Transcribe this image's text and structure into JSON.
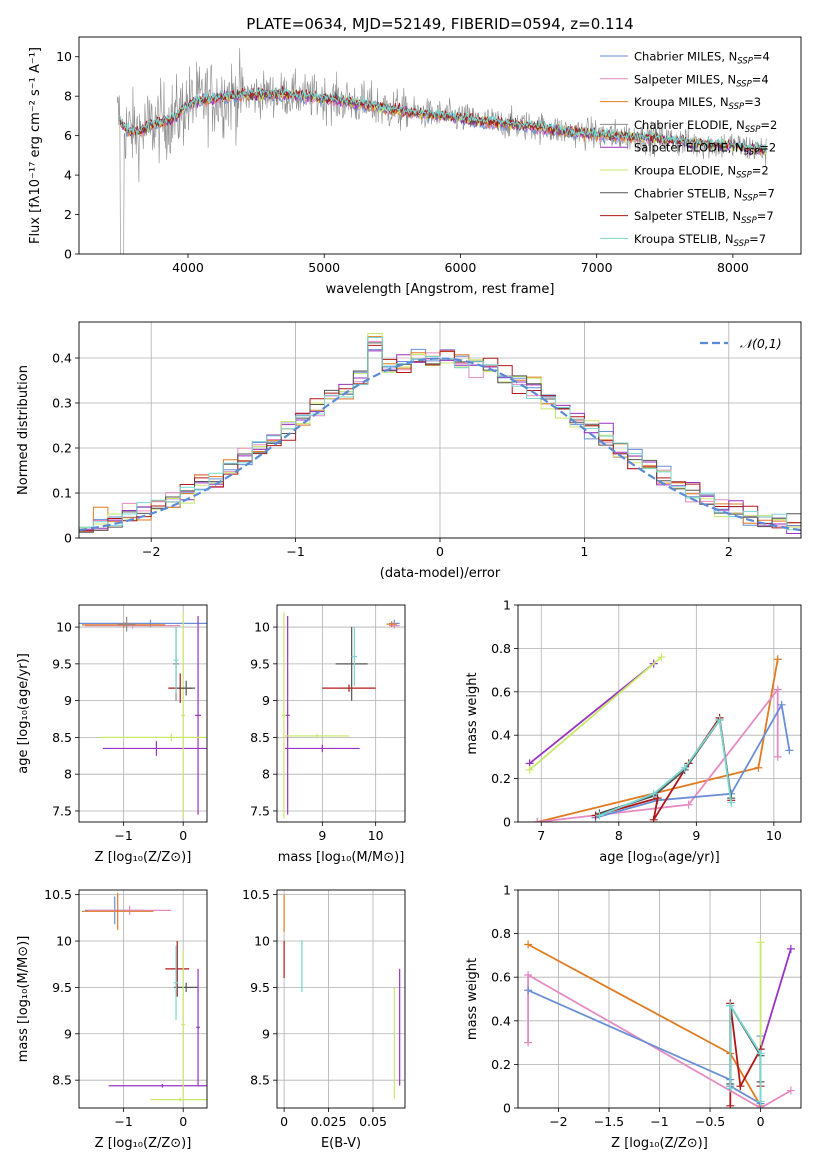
{
  "figure": {
    "title": "PLATE=0634, MJD=52149, FIBERID=0594, z=0.114"
  },
  "colors": {
    "chabrier_miles": "#6a8fd6",
    "salpeter_miles": "#e58ac2",
    "kroupa_miles": "#e07b22",
    "chabrier_elodie": "#8b8b8b",
    "salpeter_elodie": "#9932c0",
    "kroupa_elodie": "#c8e86a",
    "chabrier_stelib": "#555555",
    "salpeter_stelib": "#b01818",
    "kroupa_stelib": "#79d6d0",
    "normal_curve": "#5b8bd8",
    "grid": "#b0b0b0"
  },
  "chart_data": [
    {
      "id": "spectrum",
      "type": "line",
      "title": "",
      "xlabel": "wavelength [Angstrom, rest frame]",
      "ylabel": "Flux [fλ10⁻¹⁷ erg cm⁻² s⁻¹ A⁻¹]",
      "xlim": [
        3200,
        8500
      ],
      "ylim": [
        0,
        11
      ],
      "x_ticks": [
        4000,
        5000,
        6000,
        7000,
        8000
      ],
      "y_ticks": [
        0,
        2,
        4,
        6,
        8,
        10
      ],
      "grid": false,
      "legend": "top-right",
      "series": [
        {
          "name": "Chabrier MILES, N_SSP=4",
          "color_key": "chabrier_miles"
        },
        {
          "name": "Salpeter MILES, N_SSP=4",
          "color_key": "salpeter_miles"
        },
        {
          "name": "Kroupa MILES, N_SSP=3",
          "color_key": "kroupa_miles"
        },
        {
          "name": "Chabrier ELODIE, N_SSP=2",
          "color_key": "chabrier_elodie"
        },
        {
          "name": "Salpeter ELODIE, N_SSP=2",
          "color_key": "salpeter_elodie"
        },
        {
          "name": "Kroupa ELODIE, N_SSP=2",
          "color_key": "kroupa_elodie"
        },
        {
          "name": "Chabrier STELIB, N_SSP=7",
          "color_key": "chabrier_stelib"
        },
        {
          "name": "Salpeter STELIB, N_SSP=7",
          "color_key": "salpeter_stelib"
        },
        {
          "name": "Kroupa STELIB, N_SSP=7",
          "color_key": "kroupa_stelib"
        }
      ],
      "continuum": {
        "x": [
          3480,
          3550,
          3650,
          3750,
          3900,
          4000,
          4100,
          4300,
          4500,
          4700,
          5000,
          5300,
          5600,
          5900,
          6200,
          6500,
          6800,
          7100,
          7400,
          7700,
          8000,
          8250
        ],
        "y": [
          7.0,
          6.3,
          6.2,
          6.6,
          6.9,
          7.6,
          7.8,
          8.0,
          8.1,
          8.1,
          7.9,
          7.6,
          7.2,
          7.0,
          6.7,
          6.5,
          6.2,
          6.0,
          5.9,
          5.6,
          5.5,
          5.2
        ]
      }
    },
    {
      "id": "residuals",
      "type": "histogram",
      "xlabel": "(data-model)/error",
      "ylabel": "Normed distribution",
      "xlim": [
        -2.5,
        2.5
      ],
      "ylim": [
        0,
        0.48
      ],
      "x_ticks": [
        -2,
        -1,
        0,
        1,
        2
      ],
      "y_ticks": [
        0.0,
        0.1,
        0.2,
        0.3,
        0.4
      ],
      "grid": true,
      "legend": "top-right",
      "normal_label": "𝒩(0,1)",
      "bin_width": 0.1
    },
    {
      "id": "age_vs_Z",
      "type": "errorbar",
      "xlabel": "Z [log₁₀(Z/Z⊙)]",
      "ylabel": "age  [log₁₀(age/yr)]",
      "xlim": [
        -1.75,
        0.4
      ],
      "ylim": [
        7.35,
        10.3
      ],
      "x_ticks": [
        -1,
        0
      ],
      "y_ticks": [
        7.5,
        8.0,
        8.5,
        9.0,
        9.5,
        10.0
      ],
      "grid": true,
      "points": [
        {
          "c": "chabrier_miles",
          "x": -0.55,
          "xe": 1.2,
          "y": 10.05,
          "ye": 0.05
        },
        {
          "c": "salpeter_miles",
          "x": -0.85,
          "xe": 0.8,
          "y": 10.02,
          "ye": 0.04
        },
        {
          "c": "kroupa_miles",
          "x": -1.0,
          "xe": 0.7,
          "y": 10.03,
          "ye": 0.04
        },
        {
          "c": "chabrier_elodie",
          "x": -0.95,
          "xe": 0.15,
          "y": 10.04,
          "ye": 0.1
        },
        {
          "c": "chabrier_elodie",
          "x": -0.12,
          "xe": 0.05,
          "y": 9.5,
          "ye": 0.5
        },
        {
          "c": "salpeter_elodie",
          "x": 0.25,
          "xe": 0.05,
          "y": 8.8,
          "ye": 1.35
        },
        {
          "c": "salpeter_elodie",
          "x": -0.45,
          "xe": 0.9,
          "y": 8.35,
          "ye": 0.1
        },
        {
          "c": "kroupa_elodie",
          "x": -0.2,
          "xe": 1.2,
          "y": 8.5,
          "ye": 0.05
        },
        {
          "c": "kroupa_elodie",
          "x": 0.0,
          "xe": 0.03,
          "y": 8.8,
          "ye": 1.4
        },
        {
          "c": "salpeter_stelib",
          "x": -0.05,
          "xe": 0.2,
          "y": 9.17,
          "ye": 0.2
        },
        {
          "c": "chabrier_stelib",
          "x": 0.05,
          "xe": 0.15,
          "y": 9.17,
          "ye": 0.1
        },
        {
          "c": "kroupa_stelib",
          "x": -0.12,
          "xe": 0.04,
          "y": 9.55,
          "ye": 0.45
        }
      ]
    },
    {
      "id": "age_vs_mass",
      "type": "errorbar",
      "xlabel": "mass [log₁₀(M/M⊙)]",
      "ylabel": "",
      "xlim": [
        8.15,
        10.55
      ],
      "ylim": [
        7.35,
        10.3
      ],
      "x_ticks": [
        9,
        10
      ],
      "y_ticks": [
        7.5,
        8.0,
        8.5,
        9.0,
        9.5,
        10.0
      ],
      "grid": true,
      "points": [
        {
          "c": "chabrier_miles",
          "x": 10.35,
          "xe": 0.1,
          "y": 10.05,
          "ye": 0.05
        },
        {
          "c": "salpeter_miles",
          "x": 10.35,
          "xe": 0.1,
          "y": 10.02,
          "ye": 0.04
        },
        {
          "c": "kroupa_miles",
          "x": 10.3,
          "xe": 0.1,
          "y": 10.04,
          "ye": 0.04
        },
        {
          "c": "salpeter_stelib",
          "x": 9.5,
          "xe": 0.5,
          "y": 9.17,
          "ye": 0.05
        },
        {
          "c": "chabrier_stelib",
          "x": 9.55,
          "xe": 0.3,
          "y": 9.5,
          "ye": 0.5
        },
        {
          "c": "kroupa_stelib",
          "x": 9.6,
          "xe": 0.05,
          "y": 9.6,
          "ye": 0.4
        },
        {
          "c": "salpeter_elodie",
          "x": 9.0,
          "xe": 0.7,
          "y": 8.35,
          "ye": 0.05
        },
        {
          "c": "salpeter_elodie",
          "x": 8.35,
          "xe": 0.04,
          "y": 8.8,
          "ye": 1.35
        },
        {
          "c": "kroupa_elodie",
          "x": 8.9,
          "xe": 0.6,
          "y": 8.52,
          "ye": 0.03
        },
        {
          "c": "kroupa_elodie",
          "x": 8.28,
          "xe": 0.04,
          "y": 8.8,
          "ye": 1.4
        }
      ]
    },
    {
      "id": "weight_vs_age",
      "type": "line",
      "xlabel": "age  [log₁₀(age/yr)]",
      "ylabel": "mass weight",
      "xlim": [
        6.7,
        10.35
      ],
      "ylim": [
        0,
        1
      ],
      "x_ticks": [
        7,
        8,
        9,
        10
      ],
      "y_ticks": [
        0.0,
        0.2,
        0.4,
        0.6,
        0.8,
        1.0
      ],
      "grid": true,
      "series": [
        {
          "c": "salpeter_elodie",
          "x": [
            6.85,
            8.45
          ],
          "y": [
            0.27,
            0.73
          ]
        },
        {
          "c": "kroupa_elodie",
          "x": [
            6.85,
            8.55
          ],
          "y": [
            0.24,
            0.76
          ]
        },
        {
          "c": "kroupa_miles",
          "x": [
            6.95,
            9.8,
            10.05
          ],
          "y": [
            0.0,
            0.25,
            0.75
          ]
        },
        {
          "c": "salpeter_miles",
          "x": [
            6.95,
            8.9,
            10.05,
            10.05
          ],
          "y": [
            0.0,
            0.08,
            0.61,
            0.3
          ]
        },
        {
          "c": "chabrier_miles",
          "x": [
            7.7,
            8.5,
            9.45,
            10.1,
            10.2
          ],
          "y": [
            0.02,
            0.1,
            0.13,
            0.54,
            0.33
          ]
        },
        {
          "c": "salpeter_stelib",
          "x": [
            7.7,
            8.5,
            8.45,
            8.9,
            9.3,
            9.45
          ],
          "y": [
            0.03,
            0.11,
            0.01,
            0.27,
            0.48,
            0.1
          ]
        },
        {
          "c": "chabrier_stelib",
          "x": [
            7.75,
            8.45,
            8.85,
            9.3,
            9.45
          ],
          "y": [
            0.04,
            0.12,
            0.24,
            0.47,
            0.11
          ]
        },
        {
          "c": "kroupa_stelib",
          "x": [
            7.75,
            8.45,
            8.85,
            9.3,
            9.45
          ],
          "y": [
            0.03,
            0.13,
            0.25,
            0.47,
            0.09
          ]
        }
      ]
    },
    {
      "id": "mass_vs_Z",
      "type": "errorbar",
      "xlabel": "Z [log₁₀(Z/Z⊙)]",
      "ylabel": "mass [log₁₀(M/M⊙)]",
      "xlim": [
        -1.75,
        0.4
      ],
      "ylim": [
        8.2,
        10.55
      ],
      "x_ticks": [
        -1,
        0
      ],
      "y_ticks": [
        8.5,
        9.0,
        9.5,
        10.0,
        10.5
      ],
      "grid": true,
      "points": [
        {
          "c": "chabrier_miles",
          "x": -1.15,
          "xe": 0.5,
          "y": 10.33,
          "ye": 0.15
        },
        {
          "c": "salpeter_miles",
          "x": -0.9,
          "xe": 0.7,
          "y": 10.33,
          "ye": 0.05
        },
        {
          "c": "kroupa_miles",
          "x": -1.1,
          "xe": 0.6,
          "y": 10.32,
          "ye": 0.2
        },
        {
          "c": "salpeter_stelib",
          "x": -0.1,
          "xe": 0.2,
          "y": 9.7,
          "ye": 0.3
        },
        {
          "c": "chabrier_stelib",
          "x": 0.05,
          "xe": 0.2,
          "y": 9.5,
          "ye": 0.05
        },
        {
          "c": "kroupa_stelib",
          "x": -0.12,
          "xe": 0.04,
          "y": 9.55,
          "ye": 0.4
        },
        {
          "c": "salpeter_elodie",
          "x": -0.35,
          "xe": 0.9,
          "y": 8.44,
          "ye": 0.02
        },
        {
          "c": "salpeter_elodie",
          "x": 0.25,
          "xe": 0.03,
          "y": 9.07,
          "ye": 0.63
        },
        {
          "c": "kroupa_elodie",
          "x": -0.05,
          "xe": 0.5,
          "y": 8.29,
          "ye": 0.02
        },
        {
          "c": "kroupa_elodie",
          "x": 0.0,
          "xe": 0.03,
          "y": 9.1,
          "ye": 0.8
        }
      ]
    },
    {
      "id": "mass_vs_ebv",
      "type": "errorbar",
      "xlabel": "E(B-V)",
      "ylabel": "",
      "xlim": [
        -0.004,
        0.068
      ],
      "ylim": [
        8.2,
        10.55
      ],
      "x_ticks": [
        0.0,
        0.025,
        0.05
      ],
      "y_ticks": [
        8.5,
        9.0,
        9.5,
        10.0,
        10.5
      ],
      "grid": true,
      "points": [
        {
          "c": "salpeter_stelib",
          "x": 0.0,
          "xe": 0.0,
          "y": 9.8,
          "ye": 0.2
        },
        {
          "c": "kroupa_miles",
          "x": 0.0,
          "xe": 0.0,
          "y": 10.3,
          "ye": 0.2
        },
        {
          "c": "kroupa_stelib",
          "x": 0.01,
          "xe": 0.0,
          "y": 9.73,
          "ye": 0.28
        },
        {
          "c": "kroupa_elodie",
          "x": 0.062,
          "xe": 0.0,
          "y": 8.9,
          "ye": 0.6
        },
        {
          "c": "salpeter_elodie",
          "x": 0.065,
          "xe": 0.0,
          "y": 9.07,
          "ye": 0.63
        }
      ]
    },
    {
      "id": "weight_vs_Z",
      "type": "line",
      "xlabel": "Z [log₁₀(Z/Z⊙)]",
      "ylabel": "mass weight",
      "xlim": [
        -2.4,
        0.4
      ],
      "ylim": [
        0,
        1
      ],
      "x_ticks": [
        -2.0,
        -1.5,
        -1.0,
        -0.5,
        0.0
      ],
      "y_ticks": [
        0.0,
        0.2,
        0.4,
        0.6,
        0.8,
        1.0
      ],
      "grid": true,
      "series": [
        {
          "c": "kroupa_miles",
          "x": [
            -2.3,
            -0.3,
            0.0
          ],
          "y": [
            0.75,
            0.25,
            0.01
          ]
        },
        {
          "c": "salpeter_miles",
          "x": [
            -2.3,
            -2.3,
            0.0,
            0.3
          ],
          "y": [
            0.3,
            0.61,
            0.0,
            0.08
          ]
        },
        {
          "c": "chabrier_miles",
          "x": [
            -2.3,
            -0.3,
            -0.3,
            0.0,
            0.0
          ],
          "y": [
            0.54,
            0.13,
            0.1,
            0.02,
            0.33
          ]
        },
        {
          "c": "salpeter_elodie",
          "x": [
            0.0,
            0.3
          ],
          "y": [
            0.27,
            0.73
          ]
        },
        {
          "c": "kroupa_elodie",
          "x": [
            0.0,
            0.0
          ],
          "y": [
            0.24,
            0.76
          ]
        },
        {
          "c": "salpeter_stelib",
          "x": [
            -0.3,
            -0.3,
            -0.2,
            0.0,
            0.0
          ],
          "y": [
            0.01,
            0.48,
            0.1,
            0.27,
            0.1
          ]
        },
        {
          "c": "chabrier_stelib",
          "x": [
            -0.3,
            -0.3,
            0.0,
            0.0
          ],
          "y": [
            0.11,
            0.47,
            0.24,
            0.12
          ]
        },
        {
          "c": "kroupa_stelib",
          "x": [
            -0.3,
            -0.3,
            0.0,
            0.0
          ],
          "y": [
            0.09,
            0.47,
            0.25,
            0.03
          ]
        }
      ]
    }
  ]
}
